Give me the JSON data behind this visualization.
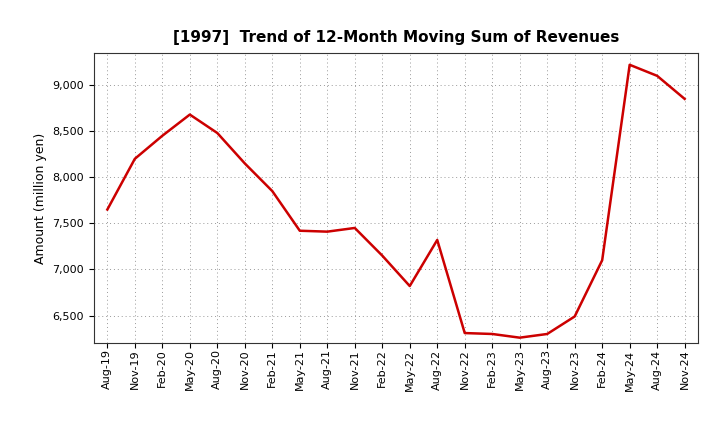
{
  "title": "[1997]  Trend of 12-Month Moving Sum of Revenues",
  "ylabel": "Amount (million yen)",
  "line_color": "#cc0000",
  "line_width": 1.8,
  "background_color": "#ffffff",
  "grid_color": "#999999",
  "ylim": [
    6200,
    9350
  ],
  "yticks": [
    6500,
    7000,
    7500,
    8000,
    8500,
    9000
  ],
  "x_labels": [
    "Aug-19",
    "Nov-19",
    "Feb-20",
    "May-20",
    "Aug-20",
    "Nov-20",
    "Feb-21",
    "May-21",
    "Aug-21",
    "Nov-21",
    "Feb-22",
    "May-22",
    "Aug-22",
    "Nov-22",
    "Feb-23",
    "May-23",
    "Aug-23",
    "Nov-23",
    "Feb-24",
    "May-24",
    "Aug-24",
    "Nov-24"
  ],
  "y_values": [
    7650,
    8200,
    8450,
    8680,
    8480,
    8150,
    7850,
    7420,
    7410,
    7450,
    7150,
    6820,
    7320,
    6310,
    6300,
    6260,
    6300,
    6490,
    7100,
    9220,
    9100,
    8850
  ],
  "title_fontsize": 11,
  "ylabel_fontsize": 9,
  "tick_fontsize": 8
}
